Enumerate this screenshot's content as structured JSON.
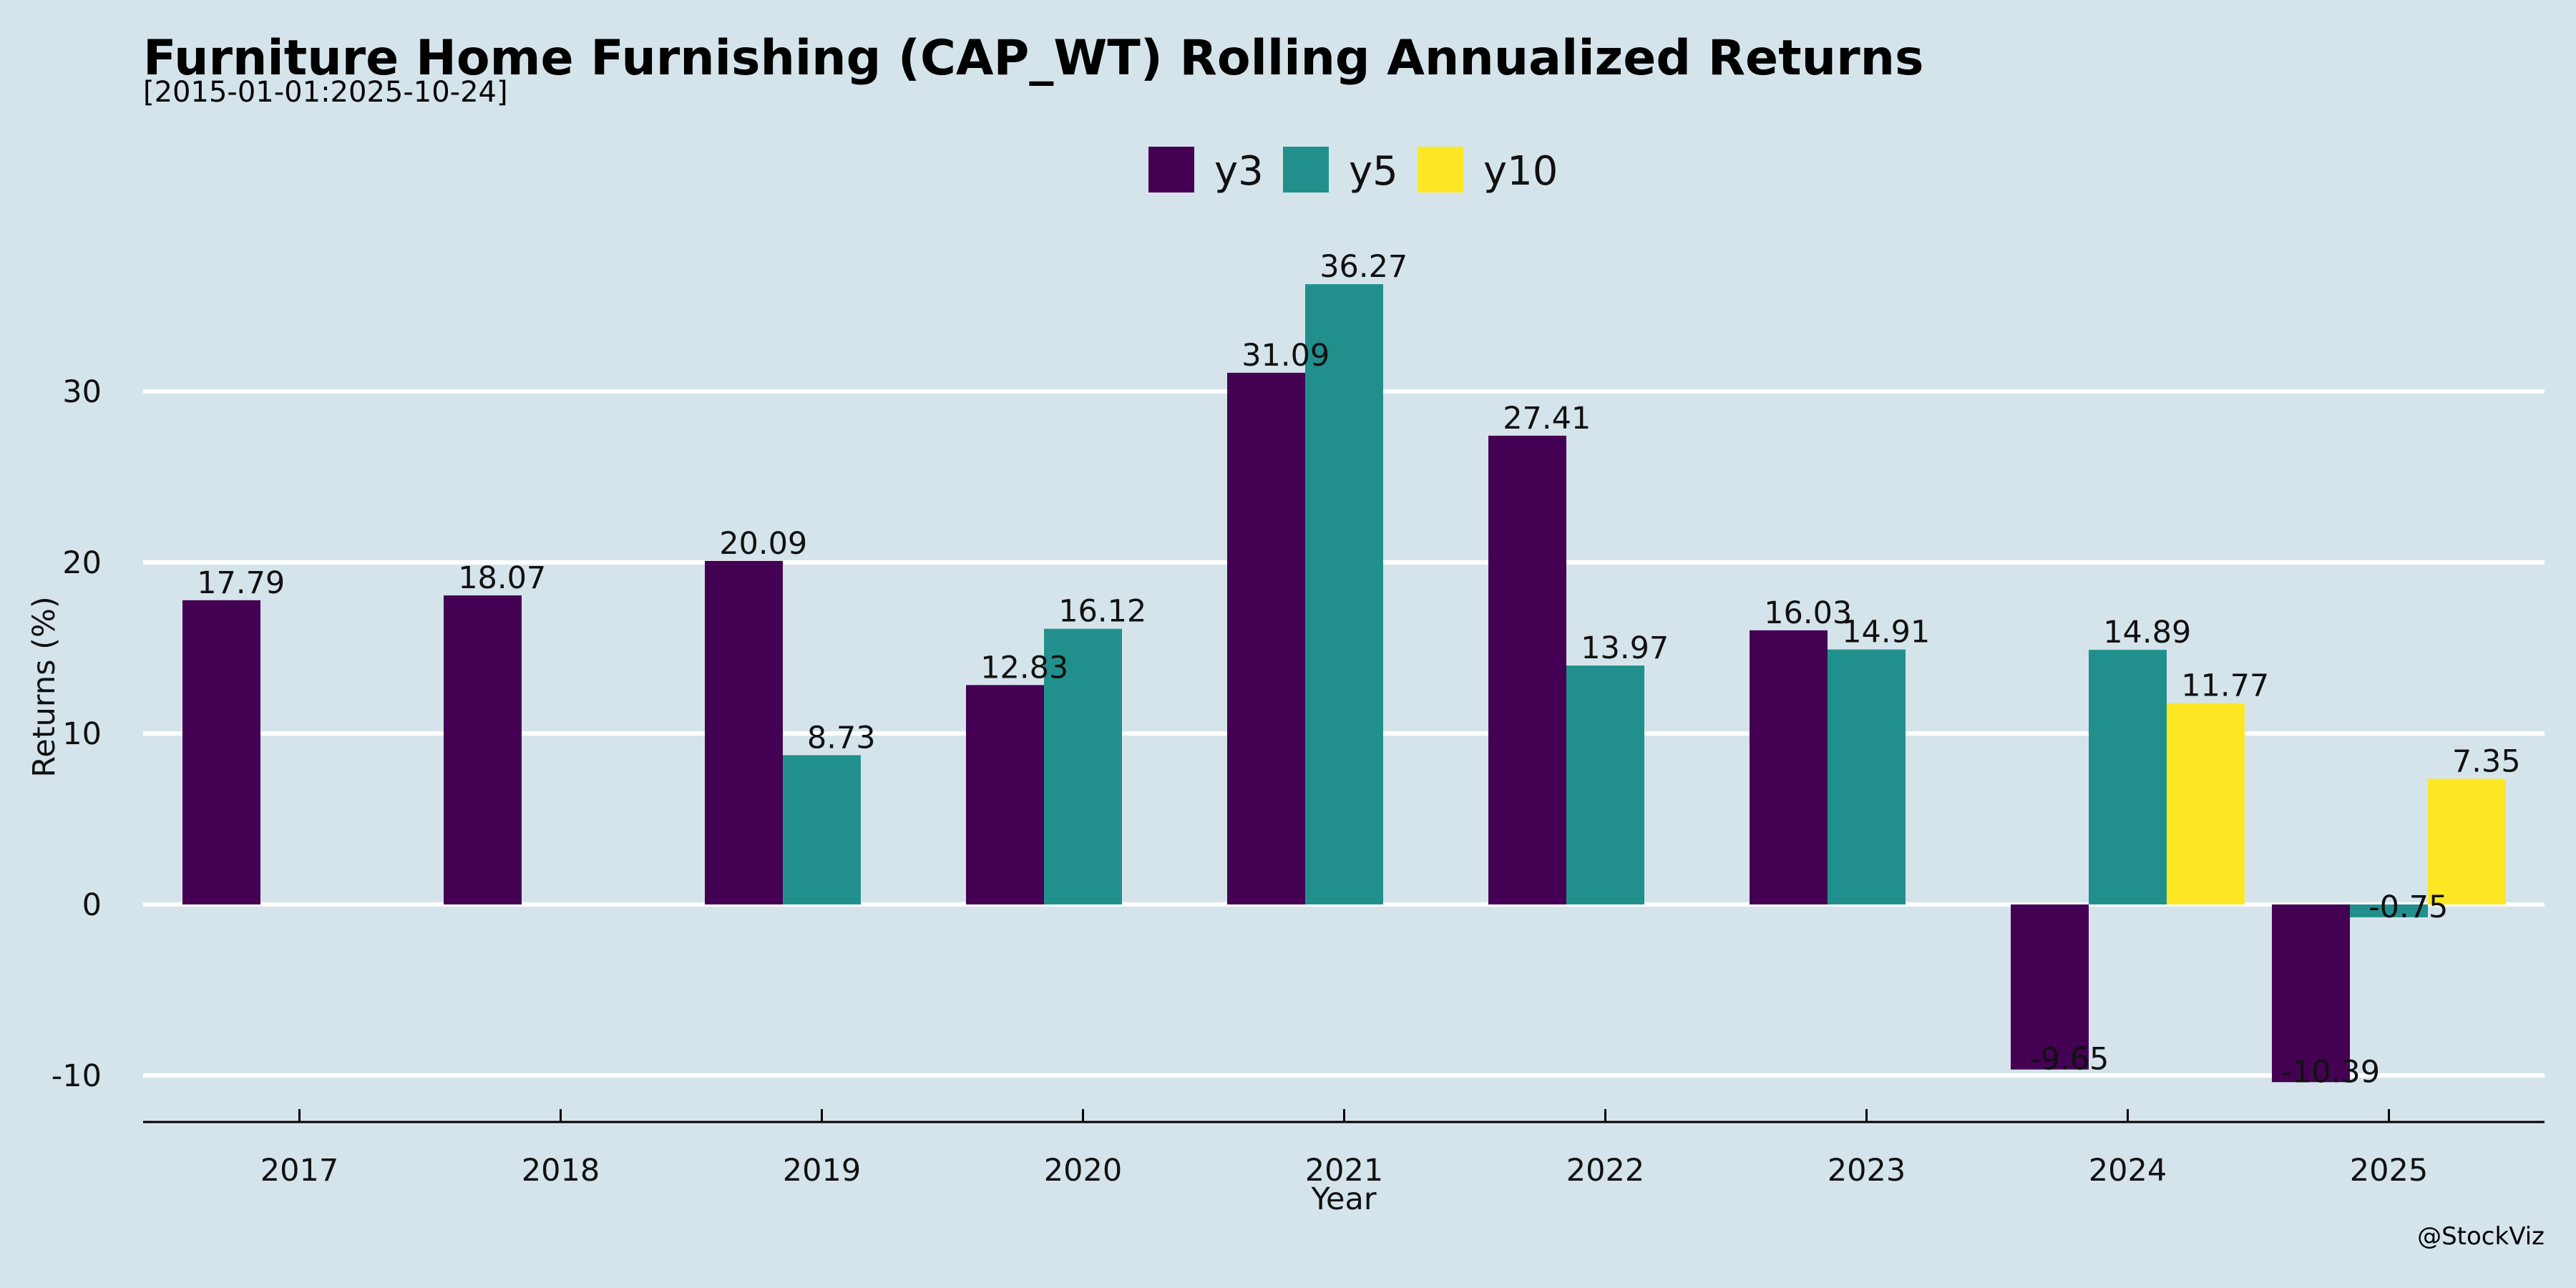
{
  "header": {
    "title": "Furniture Home Furnishing (CAP_WT) Rolling Annualized Returns",
    "subtitle": "[2015-01-01:2025-10-24]"
  },
  "footer": {
    "credit": "@StockViz"
  },
  "colors": {
    "background": "#d5e4eb",
    "grid": "#ffffff",
    "axis": "#000000",
    "y3": "#440154",
    "y5": "#21908d",
    "y10": "#fde725"
  },
  "chart_data": {
    "type": "bar",
    "title": "Furniture Home Furnishing (CAP_WT) Rolling Annualized Returns",
    "subtitle": "[2015-01-01:2025-10-24]",
    "xlabel": "Year",
    "ylabel": "Returns (%)",
    "ylim": [
      -12.5,
      40.5
    ],
    "yticks": [
      -10,
      0,
      10,
      20,
      30
    ],
    "grid": true,
    "legend_position": "top-center",
    "categories": [
      "2017",
      "2018",
      "2019",
      "2020",
      "2021",
      "2022",
      "2023",
      "2024",
      "2025"
    ],
    "series": [
      {
        "name": "y3",
        "color": "#440154",
        "values": [
          17.79,
          18.07,
          20.09,
          12.83,
          31.09,
          27.41,
          16.03,
          -9.65,
          -10.39
        ],
        "labels": [
          "17.79",
          "18.07",
          "20.09",
          "12.83",
          "31.09",
          "27.41",
          "16.03",
          "-9.65",
          "-10.39"
        ]
      },
      {
        "name": "y5",
        "color": "#21908d",
        "values": [
          null,
          null,
          8.73,
          16.12,
          36.27,
          13.97,
          14.91,
          14.89,
          -0.75
        ],
        "labels": [
          "",
          "",
          "8.73",
          "16.12",
          "36.27",
          "13.97",
          "14.91",
          "14.89",
          "-0.75"
        ]
      },
      {
        "name": "y10",
        "color": "#fde725",
        "values": [
          null,
          null,
          null,
          null,
          null,
          null,
          null,
          11.77,
          7.35
        ],
        "labels": [
          "",
          "",
          "",
          "",
          "",
          "",
          "",
          "11.77",
          "7.35"
        ]
      }
    ]
  }
}
